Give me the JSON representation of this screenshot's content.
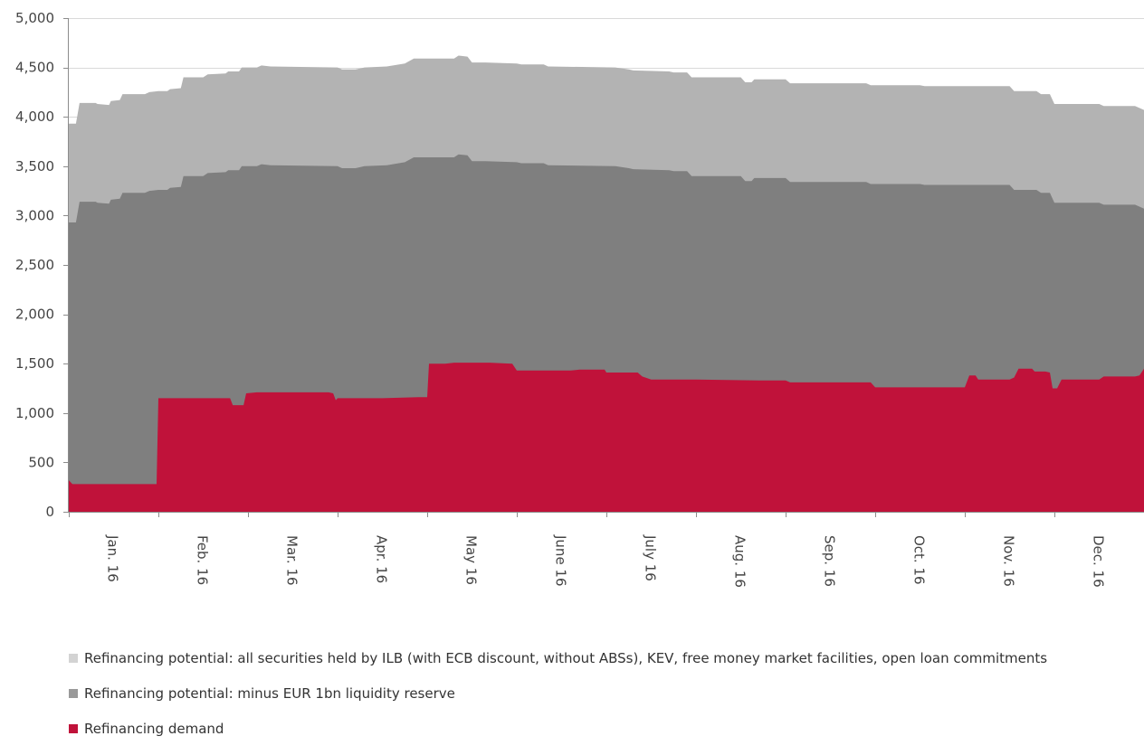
{
  "chart_data": {
    "type": "area",
    "title": "",
    "xlabel": "",
    "ylabel": "",
    "ylim": [
      0,
      5000
    ],
    "yticks": [
      0,
      500,
      1000,
      1500,
      2000,
      2500,
      3000,
      3500,
      4000,
      4500,
      5000
    ],
    "ytick_labels": [
      "0",
      "500",
      "1,000",
      "1,500",
      "2,000",
      "2,500",
      "3,000",
      "3,500",
      "4,000",
      "4,500",
      "5,000"
    ],
    "categories": [
      "Jan. 16",
      "Feb. 16",
      "Mar. 16",
      "Apr. 16",
      "May 16",
      "June 16",
      "July 16",
      "Aug. 16",
      "Sep. 16",
      "Oct. 16",
      "Nov. 16",
      "Dec. 16"
    ],
    "x_unit": "month index (0 = start of Jan. 16, 12 = end of Dec. 16)",
    "grid": "horizontal",
    "legend_position": "bottom",
    "series": [
      {
        "name": "Refinancing potential: all securities held by ILB (with ECB discount, without ABSs), KEV, free money market facilities, open loan commitments",
        "color": "#b3b3b3",
        "points": [
          [
            0.0,
            3930
          ],
          [
            0.08,
            3930
          ],
          [
            0.12,
            4140
          ],
          [
            0.3,
            4140
          ],
          [
            0.32,
            4130
          ],
          [
            0.45,
            4120
          ],
          [
            0.47,
            4160
          ],
          [
            0.57,
            4170
          ],
          [
            0.6,
            4230
          ],
          [
            0.85,
            4230
          ],
          [
            0.9,
            4250
          ],
          [
            1.0,
            4260
          ],
          [
            1.1,
            4260
          ],
          [
            1.13,
            4280
          ],
          [
            1.25,
            4290
          ],
          [
            1.28,
            4400
          ],
          [
            1.5,
            4400
          ],
          [
            1.55,
            4430
          ],
          [
            1.75,
            4440
          ],
          [
            1.78,
            4460
          ],
          [
            1.9,
            4460
          ],
          [
            1.93,
            4500
          ],
          [
            2.1,
            4500
          ],
          [
            2.15,
            4520
          ],
          [
            2.25,
            4510
          ],
          [
            3.0,
            4500
          ],
          [
            3.05,
            4480
          ],
          [
            3.2,
            4480
          ],
          [
            3.25,
            4490
          ],
          [
            3.3,
            4500
          ],
          [
            3.55,
            4510
          ],
          [
            3.75,
            4540
          ],
          [
            3.85,
            4590
          ],
          [
            4.3,
            4590
          ],
          [
            4.35,
            4620
          ],
          [
            4.45,
            4610
          ],
          [
            4.5,
            4550
          ],
          [
            4.65,
            4550
          ],
          [
            5.0,
            4540
          ],
          [
            5.05,
            4530
          ],
          [
            5.3,
            4530
          ],
          [
            5.35,
            4510
          ],
          [
            6.1,
            4500
          ],
          [
            6.25,
            4480
          ],
          [
            6.3,
            4470
          ],
          [
            6.7,
            4460
          ],
          [
            6.75,
            4450
          ],
          [
            6.9,
            4450
          ],
          [
            6.95,
            4400
          ],
          [
            7.5,
            4400
          ],
          [
            7.55,
            4350
          ],
          [
            7.62,
            4350
          ],
          [
            7.65,
            4380
          ],
          [
            8.0,
            4380
          ],
          [
            8.05,
            4340
          ],
          [
            8.9,
            4340
          ],
          [
            8.95,
            4320
          ],
          [
            9.5,
            4320
          ],
          [
            9.55,
            4310
          ],
          [
            10.5,
            4310
          ],
          [
            10.55,
            4260
          ],
          [
            10.8,
            4260
          ],
          [
            10.85,
            4230
          ],
          [
            10.95,
            4230
          ],
          [
            11.0,
            4130
          ],
          [
            11.5,
            4130
          ],
          [
            11.55,
            4110
          ],
          [
            11.9,
            4110
          ],
          [
            12.0,
            4070
          ]
        ]
      },
      {
        "name": "Refinancing potential: minus EUR 1bn liquidity reserve",
        "color": "#7f7f7f",
        "points": [
          [
            0.0,
            2930
          ],
          [
            0.08,
            2930
          ],
          [
            0.12,
            3140
          ],
          [
            0.3,
            3140
          ],
          [
            0.32,
            3130
          ],
          [
            0.45,
            3120
          ],
          [
            0.47,
            3160
          ],
          [
            0.57,
            3170
          ],
          [
            0.6,
            3230
          ],
          [
            0.85,
            3230
          ],
          [
            0.9,
            3250
          ],
          [
            1.0,
            3260
          ],
          [
            1.1,
            3260
          ],
          [
            1.13,
            3280
          ],
          [
            1.25,
            3290
          ],
          [
            1.28,
            3400
          ],
          [
            1.5,
            3400
          ],
          [
            1.55,
            3430
          ],
          [
            1.75,
            3440
          ],
          [
            1.78,
            3460
          ],
          [
            1.9,
            3460
          ],
          [
            1.93,
            3500
          ],
          [
            2.1,
            3500
          ],
          [
            2.15,
            3520
          ],
          [
            2.25,
            3510
          ],
          [
            3.0,
            3500
          ],
          [
            3.05,
            3480
          ],
          [
            3.2,
            3480
          ],
          [
            3.25,
            3490
          ],
          [
            3.3,
            3500
          ],
          [
            3.55,
            3510
          ],
          [
            3.75,
            3540
          ],
          [
            3.85,
            3590
          ],
          [
            4.3,
            3590
          ],
          [
            4.35,
            3620
          ],
          [
            4.45,
            3610
          ],
          [
            4.5,
            3550
          ],
          [
            4.65,
            3550
          ],
          [
            5.0,
            3540
          ],
          [
            5.05,
            3530
          ],
          [
            5.3,
            3530
          ],
          [
            5.35,
            3510
          ],
          [
            6.1,
            3500
          ],
          [
            6.25,
            3480
          ],
          [
            6.3,
            3470
          ],
          [
            6.7,
            3460
          ],
          [
            6.75,
            3450
          ],
          [
            6.9,
            3450
          ],
          [
            6.95,
            3400
          ],
          [
            7.5,
            3400
          ],
          [
            7.55,
            3350
          ],
          [
            7.62,
            3350
          ],
          [
            7.65,
            3380
          ],
          [
            8.0,
            3380
          ],
          [
            8.05,
            3340
          ],
          [
            8.9,
            3340
          ],
          [
            8.95,
            3320
          ],
          [
            9.5,
            3320
          ],
          [
            9.55,
            3310
          ],
          [
            10.5,
            3310
          ],
          [
            10.55,
            3260
          ],
          [
            10.8,
            3260
          ],
          [
            10.85,
            3230
          ],
          [
            10.95,
            3230
          ],
          [
            11.0,
            3130
          ],
          [
            11.5,
            3130
          ],
          [
            11.55,
            3110
          ],
          [
            11.9,
            3110
          ],
          [
            12.0,
            3070
          ]
        ]
      },
      {
        "name": "Refinancing demand",
        "color": "#c0123a",
        "points": [
          [
            0.0,
            320
          ],
          [
            0.04,
            280
          ],
          [
            0.98,
            280
          ],
          [
            1.0,
            1150
          ],
          [
            1.8,
            1150
          ],
          [
            1.83,
            1080
          ],
          [
            1.95,
            1080
          ],
          [
            1.98,
            1200
          ],
          [
            2.1,
            1210
          ],
          [
            2.9,
            1210
          ],
          [
            2.95,
            1200
          ],
          [
            2.98,
            1130
          ],
          [
            3.0,
            1150
          ],
          [
            3.5,
            1150
          ],
          [
            3.9,
            1160
          ],
          [
            4.0,
            1160
          ],
          [
            4.02,
            1500
          ],
          [
            4.2,
            1500
          ],
          [
            4.3,
            1510
          ],
          [
            4.7,
            1510
          ],
          [
            4.95,
            1500
          ],
          [
            5.0,
            1430
          ],
          [
            5.6,
            1430
          ],
          [
            5.7,
            1440
          ],
          [
            5.98,
            1440
          ],
          [
            6.0,
            1410
          ],
          [
            6.35,
            1410
          ],
          [
            6.4,
            1370
          ],
          [
            6.5,
            1340
          ],
          [
            7.0,
            1340
          ],
          [
            7.7,
            1330
          ],
          [
            8.0,
            1330
          ],
          [
            8.05,
            1310
          ],
          [
            8.7,
            1310
          ],
          [
            8.95,
            1310
          ],
          [
            9.0,
            1260
          ],
          [
            9.7,
            1260
          ],
          [
            10.0,
            1260
          ],
          [
            10.05,
            1380
          ],
          [
            10.12,
            1380
          ],
          [
            10.15,
            1340
          ],
          [
            10.5,
            1340
          ],
          [
            10.55,
            1360
          ],
          [
            10.6,
            1450
          ],
          [
            10.75,
            1450
          ],
          [
            10.78,
            1420
          ],
          [
            10.9,
            1420
          ],
          [
            10.95,
            1410
          ],
          [
            10.98,
            1250
          ],
          [
            11.03,
            1250
          ],
          [
            11.08,
            1340
          ],
          [
            11.5,
            1340
          ],
          [
            11.55,
            1370
          ],
          [
            11.9,
            1370
          ],
          [
            11.95,
            1380
          ],
          [
            12.0,
            1450
          ]
        ]
      }
    ]
  }
}
